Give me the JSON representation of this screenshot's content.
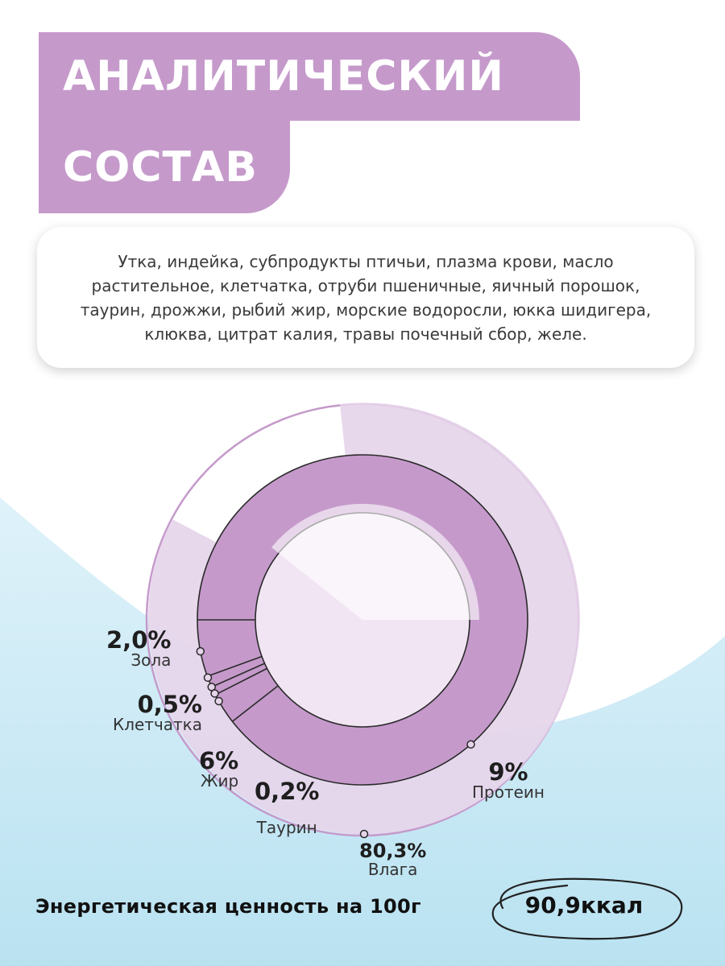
{
  "title": {
    "line1": "АНАЛИТИЧЕСКИЙ",
    "line2": "СОСТАВ"
  },
  "composition": "Утка, индейка, субпродукты птичьи, плазма крови, масло растительное, клетчатка, отруби пшеничные, яичный порошок, таурин, дрожжи, рыбий жир, морские водоросли, юкка шидигера, клюква, цитрат калия, травы почечный сбор, желе.",
  "colors": {
    "accent": "#c59acb",
    "accent_light": "#e6d4ea",
    "blue": "#c9e8f4"
  },
  "chart_data": {
    "type": "pie",
    "slices": [
      {
        "label": "Влага",
        "value_text": "80,3%",
        "value": 80.3
      },
      {
        "label": "Протеин",
        "value_text": "9%",
        "value": 9
      },
      {
        "label": "Жир",
        "value_text": "6%",
        "value": 6
      },
      {
        "label": "Зола",
        "value_text": "2,0%",
        "value": 2.0
      },
      {
        "label": "Клетчатка",
        "value_text": "0,5%",
        "value": 0.5
      },
      {
        "label": "Таурин",
        "value_text": "0,2%",
        "value": 0.2
      }
    ]
  },
  "energy": {
    "label": "Энергетическая ценность на 100г",
    "value": "90,9ккал"
  }
}
